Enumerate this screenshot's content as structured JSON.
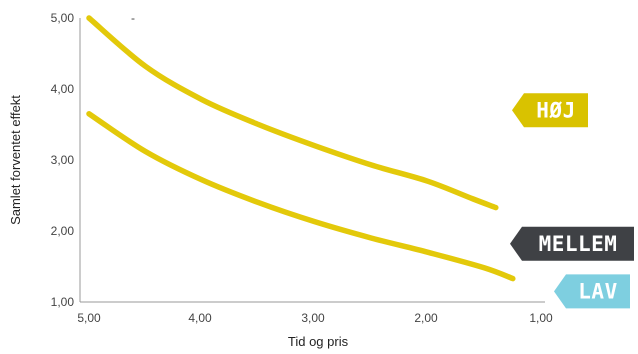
{
  "chart_data": {
    "type": "line",
    "title": "",
    "xlabel": "Tid og pris",
    "ylabel": "Samlet forventet effekt",
    "xlim": [
      5.0,
      1.0
    ],
    "ylim": [
      1.0,
      5.0
    ],
    "x_ticks": [
      "5,00",
      "4,00",
      "3,00",
      "2,00",
      "1,00"
    ],
    "y_ticks": [
      "5,00",
      "4,00",
      "3,00",
      "2,00",
      "1,00"
    ],
    "grid": false,
    "series": [
      {
        "name": "",
        "color": "#e3c90a",
        "x": [
          5.0,
          4.5,
          4.0,
          3.5,
          3.0,
          2.5,
          2.0,
          1.6,
          1.4
        ],
        "y": [
          5.0,
          4.32,
          3.85,
          3.5,
          3.2,
          2.93,
          2.7,
          2.45,
          2.33
        ]
      },
      {
        "name": "",
        "color": "#e3c90a",
        "x": [
          5.0,
          4.5,
          4.0,
          3.5,
          3.0,
          2.5,
          2.0,
          1.5,
          1.25
        ],
        "y": [
          3.65,
          3.12,
          2.72,
          2.4,
          2.13,
          1.9,
          1.7,
          1.48,
          1.33
        ]
      }
    ],
    "tags": [
      {
        "label": "HØJ",
        "color": "#d9c200",
        "value_y": 3.7
      },
      {
        "label": "MELLEM",
        "color": "#3f4145",
        "value_y": 1.82
      },
      {
        "label": "LAV",
        "color": "#7ecfe0",
        "value_y": 1.15
      }
    ],
    "stray_mark": "-"
  }
}
